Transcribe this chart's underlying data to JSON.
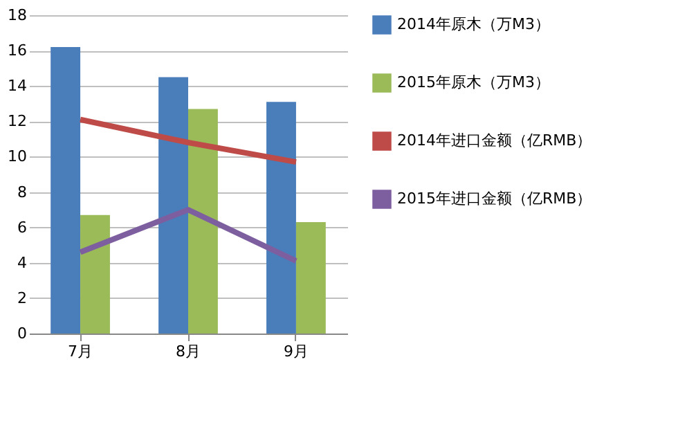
{
  "chart_data": {
    "type": "bar",
    "categories": [
      "7月",
      "8月",
      "9月"
    ],
    "series": [
      {
        "name": "2014年原木（万M3）",
        "color": "#4a7ebb",
        "values": [
          16.2,
          14.5,
          13.1
        ]
      },
      {
        "name": "2015年原木（万M3）",
        "color": "#9bbb59",
        "values": [
          6.7,
          12.7,
          6.3
        ]
      },
      {
        "name": "2014年进口金额（亿RMB）",
        "type": "line",
        "color": "#be4b48",
        "values": [
          12.1,
          10.8,
          9.7
        ]
      },
      {
        "name": "2015年进口金额（亿RMB）",
        "type": "line",
        "color": "#7d5fa0",
        "values": [
          4.6,
          7.0,
          4.1
        ]
      }
    ],
    "ylim": [
      0,
      18
    ],
    "yticks": [
      0,
      2,
      4,
      6,
      8,
      10,
      12,
      14,
      16,
      18
    ],
    "grid": "y",
    "legend": "right",
    "marker": "none"
  }
}
